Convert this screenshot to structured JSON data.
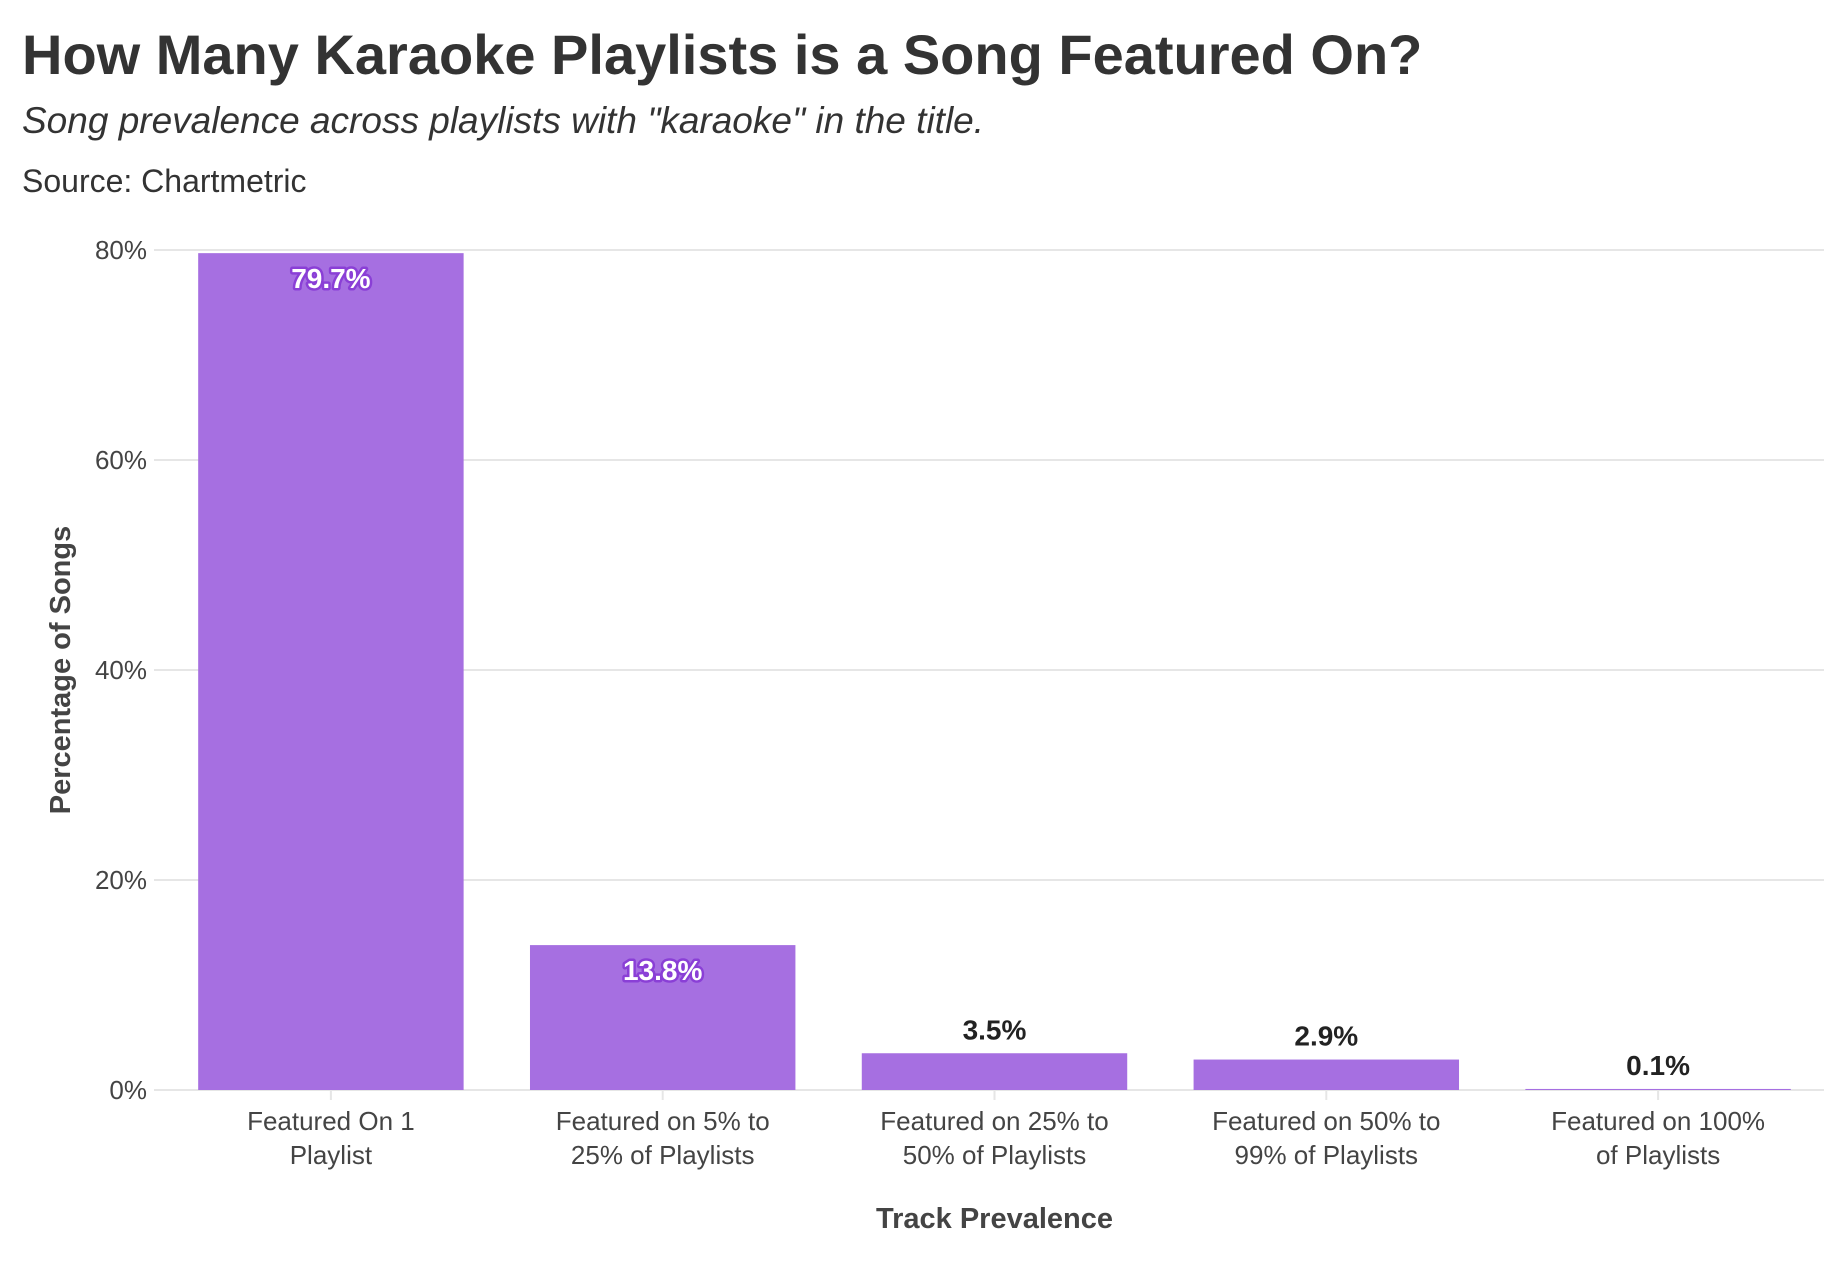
{
  "title": "How Many Karaoke Playlists is a Song Featured On?",
  "subtitle": "Song prevalence across playlists with \"karaoke\" in the title.",
  "caption": "Source: Chartmetric",
  "colors": {
    "bar": "#a66fe1",
    "grid": "#e6e6e6",
    "text": "#333333"
  },
  "chart_data": {
    "type": "bar",
    "categories": [
      [
        "Featured On 1",
        "Playlist"
      ],
      [
        "Featured on 5% to",
        "25% of Playlists"
      ],
      [
        "Featured on 25% to",
        "50% of Playlists"
      ],
      [
        "Featured on 50% to",
        "99% of Playlists"
      ],
      [
        "Featured on 100%",
        "of Playlists"
      ]
    ],
    "values": [
      79.7,
      13.8,
      3.5,
      2.9,
      0.1
    ],
    "data_labels": [
      "79.7%",
      "13.8%",
      "3.5%",
      "2.9%",
      "0.1%"
    ],
    "xlabel": "Track Prevalence",
    "ylabel": "Percentage of Songs",
    "ylim": [
      0,
      80
    ],
    "yticks": [
      0,
      20,
      40,
      60,
      80
    ],
    "ytick_labels": [
      "0%",
      "20%",
      "40%",
      "60%",
      "80%"
    ],
    "grid": true,
    "legend": "none"
  }
}
